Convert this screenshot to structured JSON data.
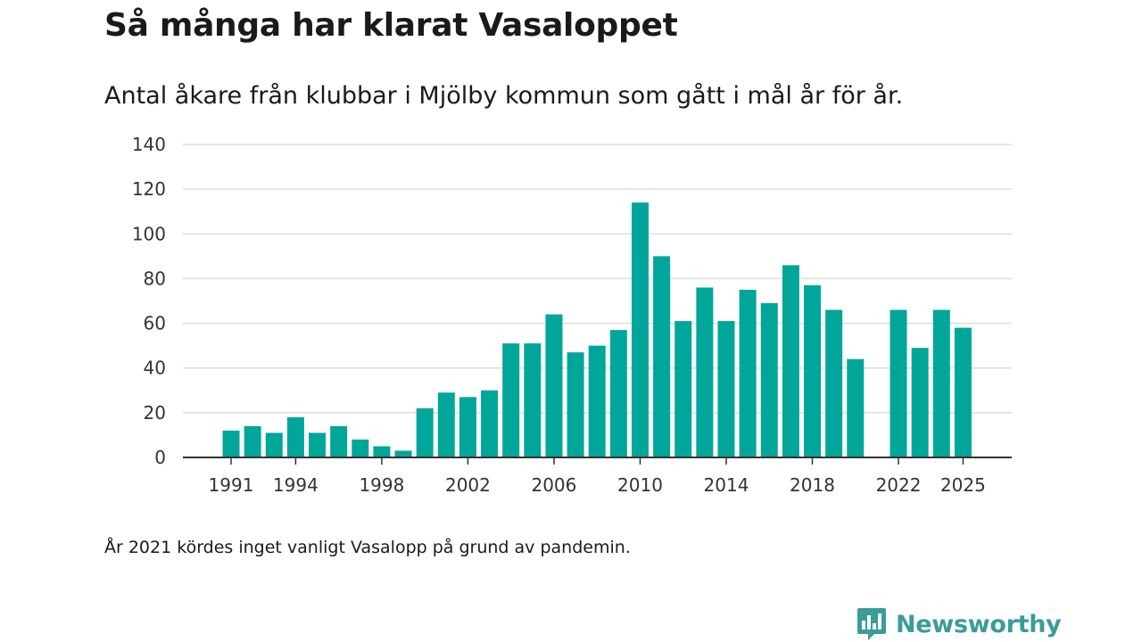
{
  "colors": {
    "bar": "#00a69a",
    "grid": "#dddddd",
    "axis": "#333333",
    "brand": "#3b9c9a"
  },
  "brand": {
    "name": "Newsworthy",
    "icon": "bar-chart-icon"
  },
  "chart_data": {
    "type": "bar",
    "title": "Så många har klarat Vasaloppet",
    "subtitle": "Antal åkare från klubbar i Mjölby kommun som gått i mål år för år.",
    "footnote": "År 2021 kördes inget vanligt Vasalopp på grund av pandemin.",
    "xlabel": "",
    "ylabel": "",
    "ylim": [
      0,
      140
    ],
    "yticks": [
      0,
      20,
      40,
      60,
      80,
      100,
      120,
      140
    ],
    "xticks": [
      1991,
      1994,
      1998,
      2002,
      2006,
      2010,
      2014,
      2018,
      2022,
      2025
    ],
    "x": [
      1991,
      1992,
      1993,
      1994,
      1995,
      1996,
      1997,
      1998,
      1999,
      2000,
      2001,
      2002,
      2003,
      2004,
      2005,
      2006,
      2007,
      2008,
      2009,
      2010,
      2011,
      2012,
      2013,
      2014,
      2015,
      2016,
      2017,
      2018,
      2019,
      2020,
      2021,
      2022,
      2023,
      2024,
      2025
    ],
    "values": [
      12,
      14,
      11,
      18,
      11,
      14,
      8,
      5,
      3,
      22,
      29,
      27,
      30,
      51,
      51,
      64,
      47,
      50,
      57,
      114,
      90,
      61,
      76,
      61,
      75,
      69,
      86,
      77,
      66,
      44,
      null,
      66,
      49,
      66,
      58
    ]
  }
}
